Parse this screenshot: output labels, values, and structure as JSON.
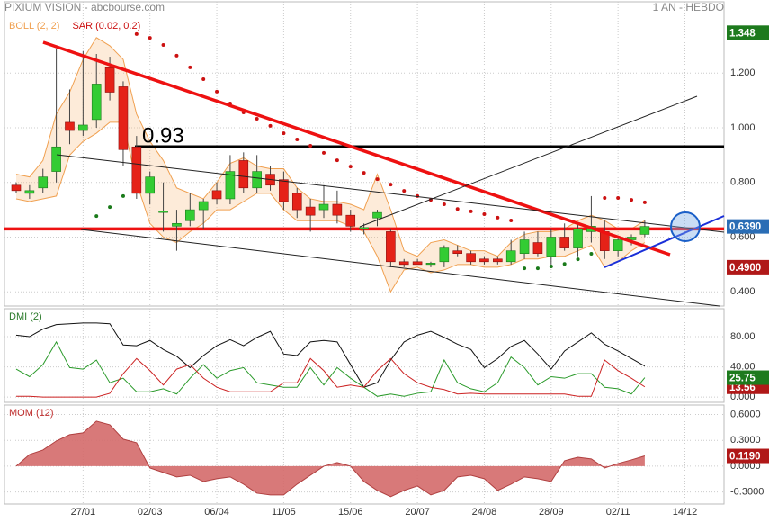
{
  "header": {
    "title": "PIXIUM VISION - abcbourse.com",
    "period": "1 AN - HEBDO"
  },
  "chart_data": [
    {
      "type": "candlestick",
      "legend": [
        {
          "name": "BOLL (2, 2)",
          "color": "#f0a050"
        },
        {
          "name": "SAR (0.02, 0.2)",
          "color": "#cc1111"
        }
      ],
      "categories": [
        null,
        null,
        null,
        null,
        null,
        "27/01",
        null,
        null,
        null,
        null,
        "02/03",
        null,
        null,
        null,
        null,
        "06/04",
        null,
        null,
        null,
        null,
        "11/05",
        null,
        null,
        null,
        null,
        "15/06",
        null,
        null,
        null,
        null,
        "20/07",
        null,
        null,
        null,
        null,
        "24/08",
        null,
        null,
        null,
        null,
        "28/09",
        null,
        null,
        null,
        null,
        "02/11",
        null,
        null,
        null,
        null,
        "14/12"
      ],
      "open": [
        0.79,
        0.76,
        0.78,
        0.84,
        1.02,
        0.99,
        1.03,
        1.22,
        1.15,
        0.93,
        0.76,
        0.69,
        0.64,
        0.66,
        0.7,
        0.77,
        0.74,
        0.88,
        0.78,
        0.83,
        0.81,
        0.76,
        0.71,
        0.7,
        0.72,
        0.68,
        0.63,
        0.67,
        0.62,
        0.51,
        0.51,
        0.5,
        0.51,
        0.55,
        0.54,
        0.52,
        0.52,
        0.51,
        0.54,
        0.58,
        0.53,
        0.6,
        0.56,
        0.62,
        0.62,
        0.55,
        0.59,
        0.61,
        null,
        null,
        null
      ],
      "high": [
        0.8,
        0.79,
        0.85,
        1.29,
        1.14,
        1.28,
        1.27,
        1.26,
        1.17,
        0.97,
        0.84,
        0.8,
        0.7,
        0.76,
        0.74,
        0.8,
        0.9,
        0.91,
        0.9,
        0.86,
        0.84,
        0.78,
        0.74,
        0.79,
        0.77,
        0.7,
        0.65,
        0.7,
        0.63,
        0.52,
        0.52,
        0.51,
        0.57,
        0.57,
        0.55,
        0.53,
        0.53,
        0.59,
        0.62,
        0.62,
        0.63,
        0.65,
        0.65,
        0.75,
        0.66,
        0.6,
        0.61,
        0.66,
        null,
        null,
        null
      ],
      "low": [
        0.76,
        0.74,
        0.76,
        0.8,
        0.94,
        0.97,
        1.0,
        1.1,
        0.86,
        0.74,
        0.72,
        0.62,
        0.55,
        0.64,
        0.63,
        0.72,
        0.72,
        0.76,
        0.76,
        0.77,
        0.7,
        0.67,
        0.62,
        0.67,
        0.65,
        0.62,
        0.61,
        0.64,
        0.49,
        0.49,
        0.5,
        0.49,
        0.49,
        0.53,
        0.5,
        0.5,
        0.5,
        0.5,
        0.52,
        0.53,
        0.5,
        0.55,
        0.53,
        0.58,
        0.52,
        0.53,
        0.57,
        0.6,
        null,
        null,
        null
      ],
      "close": [
        0.77,
        0.77,
        0.82,
        0.93,
        0.99,
        1.01,
        1.16,
        1.13,
        0.92,
        0.76,
        0.82,
        0.695,
        0.65,
        0.7,
        0.73,
        0.74,
        0.84,
        0.78,
        0.84,
        0.79,
        0.73,
        0.7,
        0.68,
        0.72,
        0.68,
        0.64,
        0.635,
        0.69,
        0.51,
        0.5,
        0.5,
        0.505,
        0.56,
        0.54,
        0.51,
        0.51,
        0.51,
        0.55,
        0.59,
        0.54,
        0.6,
        0.56,
        0.63,
        0.64,
        0.55,
        0.59,
        0.6,
        0.639,
        null,
        null,
        null
      ],
      "up_color": "#33cc33",
      "down_color": "#e52218",
      "boll_upper": [
        0.83,
        0.82,
        0.88,
        1.05,
        1.13,
        1.25,
        1.33,
        1.3,
        1.25,
        1.05,
        0.95,
        0.88,
        0.78,
        0.76,
        0.74,
        0.8,
        0.87,
        0.89,
        0.86,
        0.85,
        0.85,
        0.78,
        0.74,
        0.73,
        0.73,
        0.72,
        0.7,
        0.83,
        0.7,
        0.55,
        0.53,
        0.58,
        0.59,
        0.57,
        0.55,
        0.55,
        0.53,
        0.58,
        0.61,
        0.62,
        0.62,
        0.63,
        0.66,
        0.68,
        0.66,
        0.63,
        0.63,
        0.66,
        null,
        null,
        null
      ],
      "boll_lower": [
        0.74,
        0.73,
        0.74,
        0.75,
        0.9,
        0.95,
        0.98,
        1.02,
        1.02,
        0.8,
        0.65,
        0.6,
        0.58,
        0.62,
        0.65,
        0.7,
        0.7,
        0.73,
        0.76,
        0.76,
        0.7,
        0.66,
        0.66,
        0.66,
        0.66,
        0.64,
        0.62,
        0.53,
        0.4,
        0.48,
        0.49,
        0.47,
        0.48,
        0.5,
        0.5,
        0.49,
        0.49,
        0.5,
        0.52,
        0.52,
        0.53,
        0.53,
        0.55,
        0.57,
        0.49,
        0.51,
        0.55,
        0.58,
        null,
        null,
        null
      ],
      "sar": [
        null,
        null,
        null,
        null,
        null,
        null,
        0.677,
        0.71,
        0.75,
        1.343,
        1.329,
        1.303,
        1.264,
        1.221,
        1.178,
        1.132,
        1.089,
        1.056,
        1.033,
        1.007,
        0.98,
        0.957,
        0.934,
        0.908,
        0.881,
        0.858,
        0.835,
        0.812,
        0.792,
        0.769,
        0.75,
        0.736,
        0.72,
        0.703,
        0.694,
        0.684,
        0.671,
        0.661,
        0.486,
        0.486,
        0.493,
        0.502,
        0.519,
        0.539,
        0.743,
        0.743,
        0.736,
        0.727,
        null,
        null,
        null
      ],
      "sar_colors": {
        "above": "#cc1111",
        "below": "#1a7a1a"
      },
      "hlines": [
        {
          "value": 0.93,
          "label": "0.93",
          "color": "#000000"
        },
        {
          "value": 0.63,
          "color": "#ee1111"
        }
      ],
      "ylim": [
        0.348,
        1.461
      ],
      "yticks": [
        {
          "value": 0.4,
          "label": "0.400"
        },
        {
          "value": 0.6,
          "label": "0.600"
        },
        {
          "value": 0.8,
          "label": "0.800"
        },
        {
          "value": 1.0,
          "label": "1.000"
        },
        {
          "value": 1.2,
          "label": "1.200"
        }
      ],
      "markers": [
        {
          "value": 1.348,
          "label": "1.348",
          "color": "#1d7a1d"
        },
        {
          "value": 0.639,
          "label": "0.6390",
          "color": "#2a6db5"
        },
        {
          "value": 0.49,
          "label": "0.4900",
          "color": "#b01818"
        }
      ],
      "grid": true
    },
    {
      "type": "line",
      "title": "DMI (2)",
      "series": [
        {
          "color": "#111111",
          "values": [
            82,
            80,
            90,
            96,
            97,
            98,
            98,
            97,
            69,
            68,
            75,
            63,
            54,
            39,
            55,
            68,
            76,
            68,
            79,
            87,
            57,
            55,
            73,
            75,
            73,
            43,
            13,
            19,
            49,
            73,
            82,
            87,
            79,
            70,
            63,
            39,
            51,
            67,
            75,
            57,
            37,
            61,
            73,
            85,
            70,
            61,
            51,
            41,
            null,
            null,
            null
          ]
        },
        {
          "color": "#2a9a2a",
          "values": [
            37,
            27,
            43,
            73,
            39,
            37,
            49,
            19,
            25,
            7,
            7,
            11,
            4,
            25,
            43,
            25,
            35,
            39,
            19,
            16,
            13,
            13,
            39,
            16,
            39,
            25,
            13,
            1,
            4,
            1,
            5,
            7,
            49,
            19,
            11,
            7,
            19,
            53,
            39,
            16,
            27,
            25,
            31,
            31,
            13,
            11,
            4,
            25.75,
            null,
            null,
            null
          ]
        },
        {
          "color": "#cc2222",
          "values": [
            1,
            1,
            0,
            0,
            0,
            0,
            0,
            5,
            31,
            51,
            35,
            16,
            37,
            43,
            25,
            13,
            7,
            7,
            7,
            7,
            19,
            19,
            51,
            35,
            13,
            16,
            13,
            35,
            51,
            31,
            19,
            13,
            10,
            4,
            5,
            4,
            4,
            4,
            4,
            4,
            4,
            4,
            1,
            1,
            49,
            35,
            25,
            13.56,
            null,
            null,
            null
          ]
        }
      ],
      "ylim": [
        -7,
        117
      ],
      "yticks": [
        {
          "value": 0,
          "label": "0.000"
        },
        {
          "value": 40,
          "label": "40.00"
        },
        {
          "value": 80,
          "label": "80.00"
        }
      ],
      "markers": [
        {
          "value": 13.56,
          "label": "13.56",
          "color": "#b01818"
        },
        {
          "value": 25.75,
          "label": "25.75",
          "color": "#1d7a1d"
        }
      ],
      "grid": true
    },
    {
      "type": "area",
      "title": "MOM (12)",
      "color": "#d46a6a",
      "values": [
        0,
        0.136,
        0.188,
        0.293,
        0.366,
        0.387,
        0.523,
        0.481,
        0.314,
        0.272,
        -0.021,
        -0.073,
        -0.125,
        -0.105,
        -0.178,
        -0.146,
        -0.125,
        -0.209,
        -0.314,
        -0.334,
        -0.334,
        -0.209,
        -0.105,
        0,
        0.042,
        0,
        -0.178,
        -0.282,
        -0.355,
        -0.282,
        -0.23,
        -0.334,
        -0.282,
        -0.125,
        -0.105,
        -0.146,
        -0.282,
        -0.209,
        -0.125,
        -0.146,
        -0.178,
        0.063,
        0.104,
        0.084,
        -0.021,
        0.031,
        0.073,
        0.119,
        null,
        null,
        null
      ],
      "ylim": [
        -0.44,
        0.71
      ],
      "yticks": [
        {
          "value": -0.3,
          "label": "-0.3000"
        },
        {
          "value": 0,
          "label": "0.0000"
        },
        {
          "value": 0.3,
          "label": "0.3000"
        },
        {
          "value": 0.6,
          "label": "0.6000"
        }
      ],
      "markers": [
        {
          "value": 0.119,
          "label": "0.1190",
          "color": "#b01818"
        }
      ],
      "grid": true
    }
  ]
}
